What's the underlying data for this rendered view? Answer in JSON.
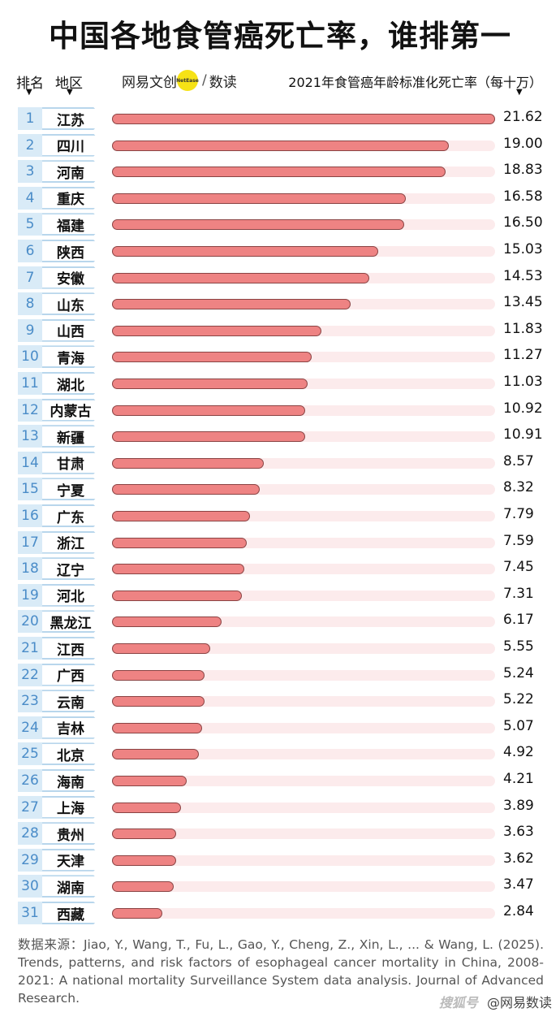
{
  "header": {
    "title": "中国各地食管癌死亡率，谁排第一",
    "rank_label": "排名",
    "region_label": "地区",
    "metric_label": "2021年食管癌年龄标准化死亡率（每十万）",
    "arrow": "▼"
  },
  "brand": {
    "name": "网易文创",
    "badge": "NetEase",
    "sep": "/",
    "sub": "数读"
  },
  "chart_data": {
    "type": "bar",
    "orientation": "horizontal",
    "title": "中国各地食管癌死亡率，谁排第一",
    "ylabel": "2021年食管癌年龄标准化死亡率（每十万）",
    "xlim": [
      0,
      21.62
    ],
    "ranks": [
      "1",
      "2",
      "3",
      "4",
      "5",
      "6",
      "7",
      "8",
      "9",
      "10",
      "11",
      "12",
      "13",
      "14",
      "15",
      "16",
      "17",
      "18",
      "19",
      "20",
      "21",
      "22",
      "23",
      "24",
      "25",
      "26",
      "27",
      "28",
      "29",
      "30",
      "31"
    ],
    "categories": [
      "江苏",
      "四川",
      "河南",
      "重庆",
      "福建",
      "陕西",
      "安徽",
      "山东",
      "山西",
      "青海",
      "湖北",
      "内蒙古",
      "新疆",
      "甘肃",
      "宁夏",
      "广东",
      "浙江",
      "辽宁",
      "河北",
      "黑龙江",
      "江西",
      "广西",
      "云南",
      "吉林",
      "北京",
      "海南",
      "上海",
      "贵州",
      "天津",
      "湖南",
      "西藏"
    ],
    "values": [
      21.62,
      19.0,
      18.83,
      16.58,
      16.5,
      15.03,
      14.53,
      13.45,
      11.83,
      11.27,
      11.03,
      10.92,
      10.91,
      8.57,
      8.32,
      7.79,
      7.59,
      7.45,
      7.31,
      6.17,
      5.55,
      5.24,
      5.22,
      5.07,
      4.92,
      4.21,
      3.89,
      3.63,
      3.62,
      3.47,
      2.84
    ],
    "value_labels": [
      "21.62",
      "19.00",
      "18.83",
      "16.58",
      "16.50",
      "15.03",
      "14.53",
      "13.45",
      "11.83",
      "11.27",
      "11.03",
      "10.92",
      "10.91",
      "8.57",
      "8.32",
      "7.79",
      "7.59",
      "7.45",
      "7.31",
      "6.17",
      "5.55",
      "5.24",
      "5.22",
      "5.07",
      "4.92",
      "4.21",
      "3.89",
      "3.63",
      "3.62",
      "3.47",
      "2.84"
    ],
    "colors": {
      "bar": "#ee8383",
      "track": "#fcebec",
      "rank_bg": "#d9ebf7",
      "rank_text": "#4a8cc8"
    }
  },
  "footer": {
    "source": "数据来源：Jiao, Y., Wang, T., Fu, L., Gao, Y., Cheng, Z., Xin, L., ... & Wang, L. (2025). Trends, patterns, and risk factors of esophageal cancer mortality in China, 2008-2021: A national mortality Surveillance System data analysis. Journal of Advanced Research.",
    "watermark_a": "搜狐号",
    "watermark_b": "@网易数读"
  }
}
